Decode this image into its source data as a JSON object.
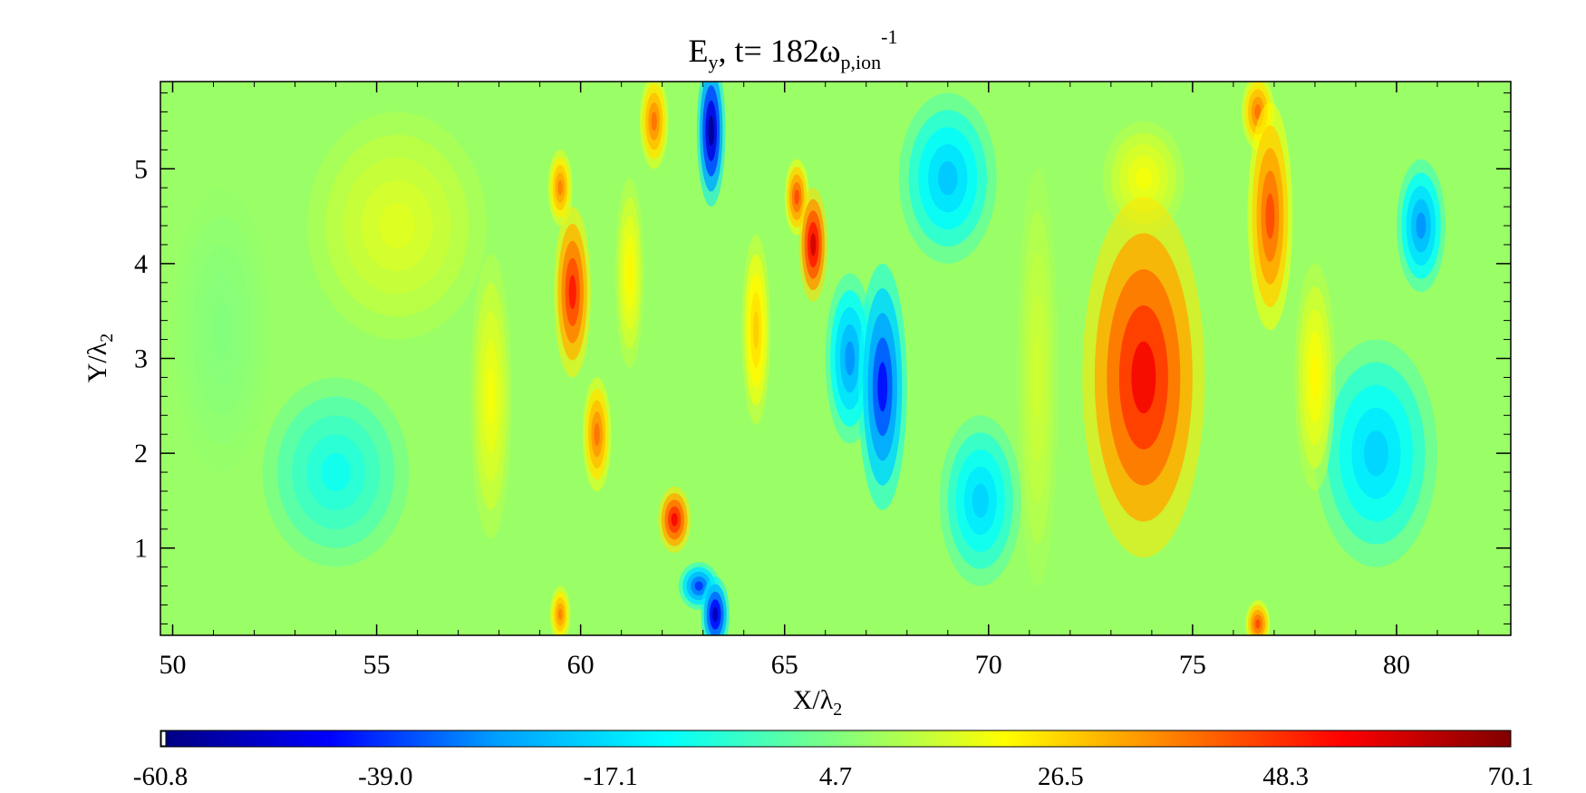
{
  "chart_data": {
    "type": "heatmap",
    "title": {
      "main": "E",
      "main_sub": "y",
      "middle": ", t=  182ω",
      "middle_sub": "p,ion",
      "middle_sup": "-1"
    },
    "xlabel": {
      "main": "X/λ",
      "sub": "2"
    },
    "ylabel": {
      "main": "Y/λ",
      "sub": "2"
    },
    "xlim": [
      49.7,
      82.8
    ],
    "ylim": [
      0.08,
      5.92
    ],
    "x_ticks": [
      50,
      55,
      60,
      65,
      70,
      75,
      80
    ],
    "x_tick_labels": [
      "50",
      "55",
      "60",
      "65",
      "70",
      "75",
      "80"
    ],
    "y_ticks": [
      1,
      2,
      3,
      4,
      5
    ],
    "y_tick_labels": [
      "1",
      "2",
      "3",
      "4",
      "5"
    ],
    "colorbar": {
      "min": -60.8,
      "max": 70.1,
      "tick_labels": [
        "-60.8",
        "-39.0",
        "-17.1",
        "4.7",
        "26.5",
        "48.3",
        "70.1"
      ],
      "colormap": [
        "#00007f",
        "#0000ff",
        "#00a0ff",
        "#00ffff",
        "#80ff80",
        "#ffff00",
        "#ff8000",
        "#ff0000",
        "#800000"
      ]
    },
    "features": [
      {
        "x": 73.8,
        "y": 2.8,
        "sx": 1.5,
        "sy": 1.9,
        "value": 55
      },
      {
        "x": 73.8,
        "y": 4.9,
        "sx": 1.0,
        "sy": 0.6,
        "value": 20
      },
      {
        "x": 63.2,
        "y": 5.4,
        "sx": 0.35,
        "sy": 0.8,
        "value": -60
      },
      {
        "x": 63.3,
        "y": 0.3,
        "sx": 0.35,
        "sy": 0.4,
        "value": -55
      },
      {
        "x": 62.9,
        "y": 0.6,
        "sx": 0.5,
        "sy": 0.25,
        "value": -40
      },
      {
        "x": 67.4,
        "y": 2.7,
        "sx": 0.6,
        "sy": 1.3,
        "value": -45
      },
      {
        "x": 66.6,
        "y": 3.0,
        "sx": 0.6,
        "sy": 0.9,
        "value": -30
      },
      {
        "x": 65.7,
        "y": 4.2,
        "sx": 0.35,
        "sy": 0.6,
        "value": 60
      },
      {
        "x": 65.3,
        "y": 4.7,
        "sx": 0.3,
        "sy": 0.4,
        "value": 45
      },
      {
        "x": 59.8,
        "y": 3.7,
        "sx": 0.45,
        "sy": 0.9,
        "value": 52
      },
      {
        "x": 59.5,
        "y": 4.8,
        "sx": 0.3,
        "sy": 0.4,
        "value": 38
      },
      {
        "x": 60.4,
        "y": 2.2,
        "sx": 0.35,
        "sy": 0.6,
        "value": 40
      },
      {
        "x": 62.3,
        "y": 1.3,
        "sx": 0.4,
        "sy": 0.35,
        "value": 55
      },
      {
        "x": 61.8,
        "y": 5.5,
        "sx": 0.35,
        "sy": 0.5,
        "value": 40
      },
      {
        "x": 59.5,
        "y": 0.3,
        "sx": 0.25,
        "sy": 0.3,
        "value": 38
      },
      {
        "x": 76.9,
        "y": 4.5,
        "sx": 0.55,
        "sy": 1.2,
        "value": 45
      },
      {
        "x": 76.6,
        "y": 5.6,
        "sx": 0.4,
        "sy": 0.4,
        "value": 40
      },
      {
        "x": 76.6,
        "y": 0.2,
        "sx": 0.3,
        "sy": 0.25,
        "value": 45
      },
      {
        "x": 80.6,
        "y": 4.4,
        "sx": 0.6,
        "sy": 0.7,
        "value": -30
      },
      {
        "x": 69.0,
        "y": 4.9,
        "sx": 1.2,
        "sy": 0.9,
        "value": -22
      },
      {
        "x": 69.8,
        "y": 1.5,
        "sx": 1.0,
        "sy": 0.9,
        "value": -20
      },
      {
        "x": 79.5,
        "y": 2.0,
        "sx": 1.5,
        "sy": 1.2,
        "value": -20
      },
      {
        "x": 78.0,
        "y": 2.8,
        "sx": 0.5,
        "sy": 1.2,
        "value": 22
      },
      {
        "x": 54.0,
        "y": 1.8,
        "sx": 1.8,
        "sy": 1.0,
        "value": -10
      },
      {
        "x": 55.5,
        "y": 4.4,
        "sx": 2.2,
        "sy": 1.2,
        "value": 17
      },
      {
        "x": 51.2,
        "y": 3.3,
        "sx": 1.2,
        "sy": 1.5,
        "value": 5
      },
      {
        "x": 57.8,
        "y": 2.6,
        "sx": 0.5,
        "sy": 1.5,
        "value": 20
      },
      {
        "x": 64.3,
        "y": 3.3,
        "sx": 0.35,
        "sy": 1.0,
        "value": 28
      },
      {
        "x": 61.2,
        "y": 3.9,
        "sx": 0.35,
        "sy": 1.0,
        "value": 22
      },
      {
        "x": 71.2,
        "y": 2.8,
        "sx": 0.5,
        "sy": 2.2,
        "value": 15
      }
    ]
  }
}
